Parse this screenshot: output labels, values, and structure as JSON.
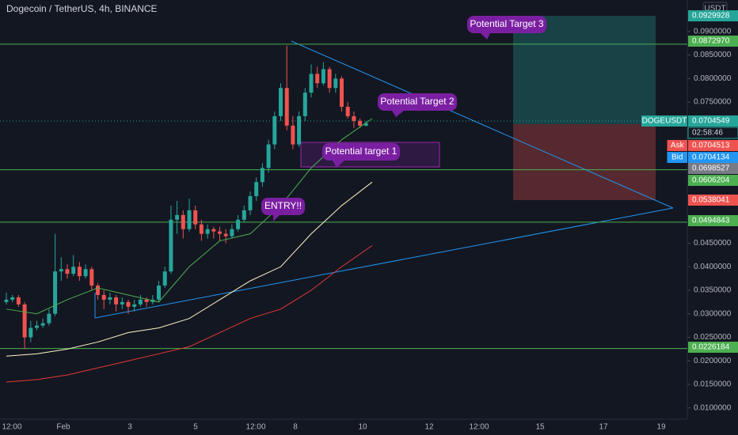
{
  "chart_data": {
    "type": "candlestick",
    "title": "Dogecoin / TetherUS, 4h, BINANCE",
    "currency": "USDT",
    "up_color": "#26a69a",
    "down_color": "#ef5350",
    "ylim": [
      0.0076,
      0.0967
    ],
    "yticks": [
      {
        "value": 0.09,
        "label": "0.0900000"
      },
      {
        "value": 0.085,
        "label": "0.0850000"
      },
      {
        "value": 0.08,
        "label": "0.0800000"
      },
      {
        "value": 0.075,
        "label": "0.0750000"
      },
      {
        "value": 0.045,
        "label": "0.0450000"
      },
      {
        "value": 0.04,
        "label": "0.0400000"
      },
      {
        "value": 0.035,
        "label": "0.0350000"
      },
      {
        "value": 0.03,
        "label": "0.0300000"
      },
      {
        "value": 0.025,
        "label": "0.0250000"
      },
      {
        "value": 0.02,
        "label": "0.0200000"
      },
      {
        "value": 0.015,
        "label": "0.0150000"
      },
      {
        "value": 0.01,
        "label": "0.0100000"
      }
    ],
    "x_labels": [
      "12:00",
      "Feb",
      "3",
      "5",
      "12:00",
      "8",
      "10",
      "12",
      "12:00",
      "15",
      "17",
      "19"
    ],
    "candles": [
      [
        0.0325,
        0.0345,
        0.032,
        0.033
      ],
      [
        0.033,
        0.034,
        0.0325,
        0.0335
      ],
      [
        0.0335,
        0.034,
        0.0315,
        0.032
      ],
      [
        0.032,
        0.0325,
        0.0225,
        0.025
      ],
      [
        0.025,
        0.0285,
        0.024,
        0.027
      ],
      [
        0.027,
        0.0285,
        0.0265,
        0.0275
      ],
      [
        0.0275,
        0.029,
        0.027,
        0.028
      ],
      [
        0.028,
        0.031,
        0.0275,
        0.03
      ],
      [
        0.03,
        0.047,
        0.0295,
        0.039
      ],
      [
        0.039,
        0.042,
        0.037,
        0.0395
      ],
      [
        0.0395,
        0.0405,
        0.0375,
        0.0385
      ],
      [
        0.0385,
        0.0425,
        0.038,
        0.04
      ],
      [
        0.04,
        0.041,
        0.037,
        0.038
      ],
      [
        0.038,
        0.0405,
        0.0375,
        0.0395
      ],
      [
        0.0395,
        0.04,
        0.035,
        0.036
      ],
      [
        0.036,
        0.0365,
        0.033,
        0.034
      ],
      [
        0.034,
        0.035,
        0.031,
        0.033
      ],
      [
        0.033,
        0.0345,
        0.032,
        0.0335
      ],
      [
        0.0335,
        0.034,
        0.0305,
        0.032
      ],
      [
        0.032,
        0.0335,
        0.031,
        0.0325
      ],
      [
        0.0325,
        0.033,
        0.03,
        0.0315
      ],
      [
        0.0315,
        0.033,
        0.0305,
        0.032
      ],
      [
        0.032,
        0.034,
        0.0315,
        0.033
      ],
      [
        0.033,
        0.0335,
        0.0315,
        0.0325
      ],
      [
        0.0325,
        0.034,
        0.032,
        0.033
      ],
      [
        0.033,
        0.037,
        0.0325,
        0.036
      ],
      [
        0.036,
        0.04,
        0.0355,
        0.039
      ],
      [
        0.039,
        0.053,
        0.0385,
        0.05
      ],
      [
        0.05,
        0.054,
        0.047,
        0.051
      ],
      [
        0.051,
        0.052,
        0.046,
        0.048
      ],
      [
        0.048,
        0.0545,
        0.0475,
        0.052
      ],
      [
        0.052,
        0.053,
        0.048,
        0.049
      ],
      [
        0.049,
        0.05,
        0.0455,
        0.047
      ],
      [
        0.047,
        0.049,
        0.046,
        0.048
      ],
      [
        0.048,
        0.0485,
        0.046,
        0.0475
      ],
      [
        0.0475,
        0.0485,
        0.0455,
        0.047
      ],
      [
        0.047,
        0.048,
        0.045,
        0.0465
      ],
      [
        0.0465,
        0.049,
        0.046,
        0.048
      ],
      [
        0.048,
        0.051,
        0.0475,
        0.05
      ],
      [
        0.05,
        0.053,
        0.0495,
        0.052
      ],
      [
        0.052,
        0.056,
        0.051,
        0.055
      ],
      [
        0.055,
        0.059,
        0.054,
        0.058
      ],
      [
        0.058,
        0.062,
        0.057,
        0.061
      ],
      [
        0.061,
        0.067,
        0.06,
        0.066
      ],
      [
        0.066,
        0.073,
        0.065,
        0.072
      ],
      [
        0.072,
        0.079,
        0.071,
        0.078
      ],
      [
        0.078,
        0.087,
        0.069,
        0.07
      ],
      [
        0.07,
        0.072,
        0.065,
        0.066
      ],
      [
        0.066,
        0.073,
        0.0655,
        0.072
      ],
      [
        0.072,
        0.078,
        0.071,
        0.077
      ],
      [
        0.077,
        0.083,
        0.076,
        0.081
      ],
      [
        0.081,
        0.0825,
        0.078,
        0.079
      ],
      [
        0.079,
        0.0835,
        0.0785,
        0.082
      ],
      [
        0.082,
        0.0825,
        0.077,
        0.078
      ],
      [
        0.078,
        0.081,
        0.077,
        0.08
      ],
      [
        0.08,
        0.0805,
        0.073,
        0.074
      ],
      [
        0.074,
        0.075,
        0.0715,
        0.072
      ],
      [
        0.072,
        0.073,
        0.0695,
        0.071
      ],
      [
        0.071,
        0.0715,
        0.0695,
        0.07
      ],
      [
        0.07,
        0.071,
        0.0698,
        0.0705
      ]
    ],
    "series": [
      {
        "color": "#4caf50",
        "values": [
          0.031,
          0.03,
          0.033,
          0.0355,
          0.034,
          0.0325,
          0.04,
          0.0455,
          0.047,
          0.053,
          0.061,
          0.067,
          0.0715
        ]
      },
      {
        "color": "#fff3c4",
        "values": [
          0.021,
          0.0215,
          0.0225,
          0.024,
          0.026,
          0.027,
          0.029,
          0.033,
          0.037,
          0.04,
          0.047,
          0.053,
          0.058
        ]
      },
      {
        "color": "#e53935",
        "values": [
          0.0155,
          0.016,
          0.017,
          0.0185,
          0.02,
          0.0215,
          0.023,
          0.026,
          0.029,
          0.031,
          0.035,
          0.04,
          0.0445
        ]
      }
    ],
    "price_tags": [
      {
        "value": 0.0929928,
        "label": "0.0929928",
        "color": "#26a69a"
      },
      {
        "value": 0.087297,
        "label": "0.0872970",
        "color": "#4caf50",
        "line": true
      },
      {
        "value": 0.0704549,
        "label": "0.0704549",
        "color": "#26a69a",
        "name": "DOGEUSDT",
        "timer": "02:58:46"
      },
      {
        "value": 0.0704513,
        "label": "0.0704513",
        "color": "#ef5350",
        "name": "Ask"
      },
      {
        "value": 0.0704134,
        "label": "0.0704134",
        "color": "#2196f3",
        "name": "Bid"
      },
      {
        "value": 0.0698527,
        "label": "0.0698527",
        "color": "#787b86"
      },
      {
        "value": 0.0606204,
        "label": "0.0606204",
        "color": "#4caf50",
        "line": true
      },
      {
        "value": 0.0538041,
        "label": "0.0538041",
        "color": "#ef5350"
      },
      {
        "value": 0.0494843,
        "label": "0.0494843",
        "color": "#4caf50",
        "line": true
      },
      {
        "value": 0.0226184,
        "label": "0.0226184",
        "color": "#4caf50",
        "line": true
      }
    ],
    "annotations": [
      "Potential Target 3",
      "Potential Target 2",
      "Potential target 1",
      "ENTRY!!"
    ]
  }
}
